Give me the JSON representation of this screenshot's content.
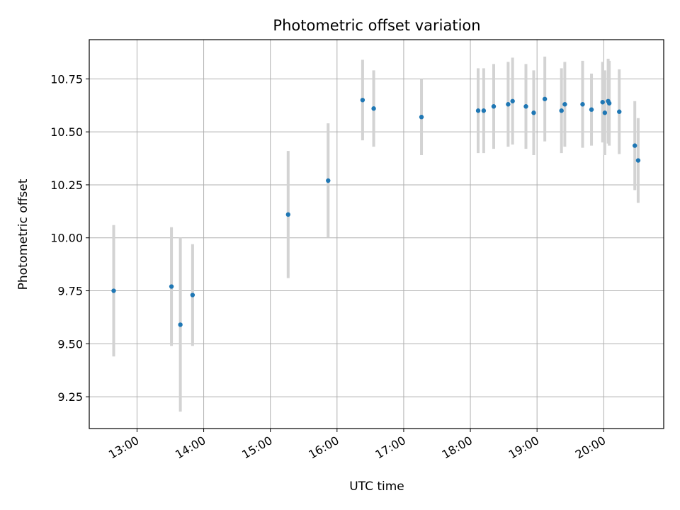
{
  "chart_data": {
    "type": "scatter",
    "title": "Photometric offset variation",
    "xlabel": "UTC time",
    "ylabel": "Photometric offset",
    "x_unit": "UTC hh:mm",
    "xlim": [
      "12:17",
      "20:54"
    ],
    "ylim": [
      9.1,
      10.935
    ],
    "x_ticks": [
      "13:00",
      "14:00",
      "15:00",
      "16:00",
      "17:00",
      "18:00",
      "19:00",
      "20:00"
    ],
    "y_ticks": [
      "9.25",
      "9.50",
      "9.75",
      "10.00",
      "10.25",
      "10.50",
      "10.75"
    ],
    "grid": true,
    "legend": "none",
    "series": [
      {
        "marker_color": "#1f77b4",
        "errorbar_color": "#d3d3d3",
        "points": [
          {
            "x": "12:39",
            "y": 9.75,
            "yerr": 0.31
          },
          {
            "x": "13:31",
            "y": 9.77,
            "yerr": 0.28
          },
          {
            "x": "13:39",
            "y": 9.59,
            "yerr": 0.41
          },
          {
            "x": "13:50",
            "y": 9.73,
            "yerr": 0.24
          },
          {
            "x": "15:16",
            "y": 10.11,
            "yerr": 0.3
          },
          {
            "x": "15:52",
            "y": 10.27,
            "yerr": 0.27
          },
          {
            "x": "16:23",
            "y": 10.65,
            "yerr": 0.19
          },
          {
            "x": "16:33",
            "y": 10.61,
            "yerr": 0.18
          },
          {
            "x": "17:16",
            "y": 10.57,
            "yerr": 0.18
          },
          {
            "x": "18:07",
            "y": 10.6,
            "yerr": 0.2
          },
          {
            "x": "18:12",
            "y": 10.6,
            "yerr": 0.2
          },
          {
            "x": "18:21",
            "y": 10.62,
            "yerr": 0.2
          },
          {
            "x": "18:34",
            "y": 10.63,
            "yerr": 0.2
          },
          {
            "x": "18:38",
            "y": 10.645,
            "yerr": 0.205
          },
          {
            "x": "18:50",
            "y": 10.62,
            "yerr": 0.2
          },
          {
            "x": "18:57",
            "y": 10.59,
            "yerr": 0.2
          },
          {
            "x": "19:07",
            "y": 10.655,
            "yerr": 0.2
          },
          {
            "x": "19:22",
            "y": 10.6,
            "yerr": 0.2
          },
          {
            "x": "19:25",
            "y": 10.63,
            "yerr": 0.2
          },
          {
            "x": "19:41",
            "y": 10.63,
            "yerr": 0.205
          },
          {
            "x": "19:49",
            "y": 10.605,
            "yerr": 0.17
          },
          {
            "x": "19:59",
            "y": 10.64,
            "yerr": 0.19
          },
          {
            "x": "20:01",
            "y": 10.59,
            "yerr": 0.2
          },
          {
            "x": "20:04",
            "y": 10.645,
            "yerr": 0.2
          },
          {
            "x": "20:05",
            "y": 10.635,
            "yerr": 0.2
          },
          {
            "x": "20:14",
            "y": 10.595,
            "yerr": 0.2
          },
          {
            "x": "20:28",
            "y": 10.435,
            "yerr": 0.21
          },
          {
            "x": "20:31",
            "y": 10.365,
            "yerr": 0.2
          }
        ]
      }
    ]
  }
}
